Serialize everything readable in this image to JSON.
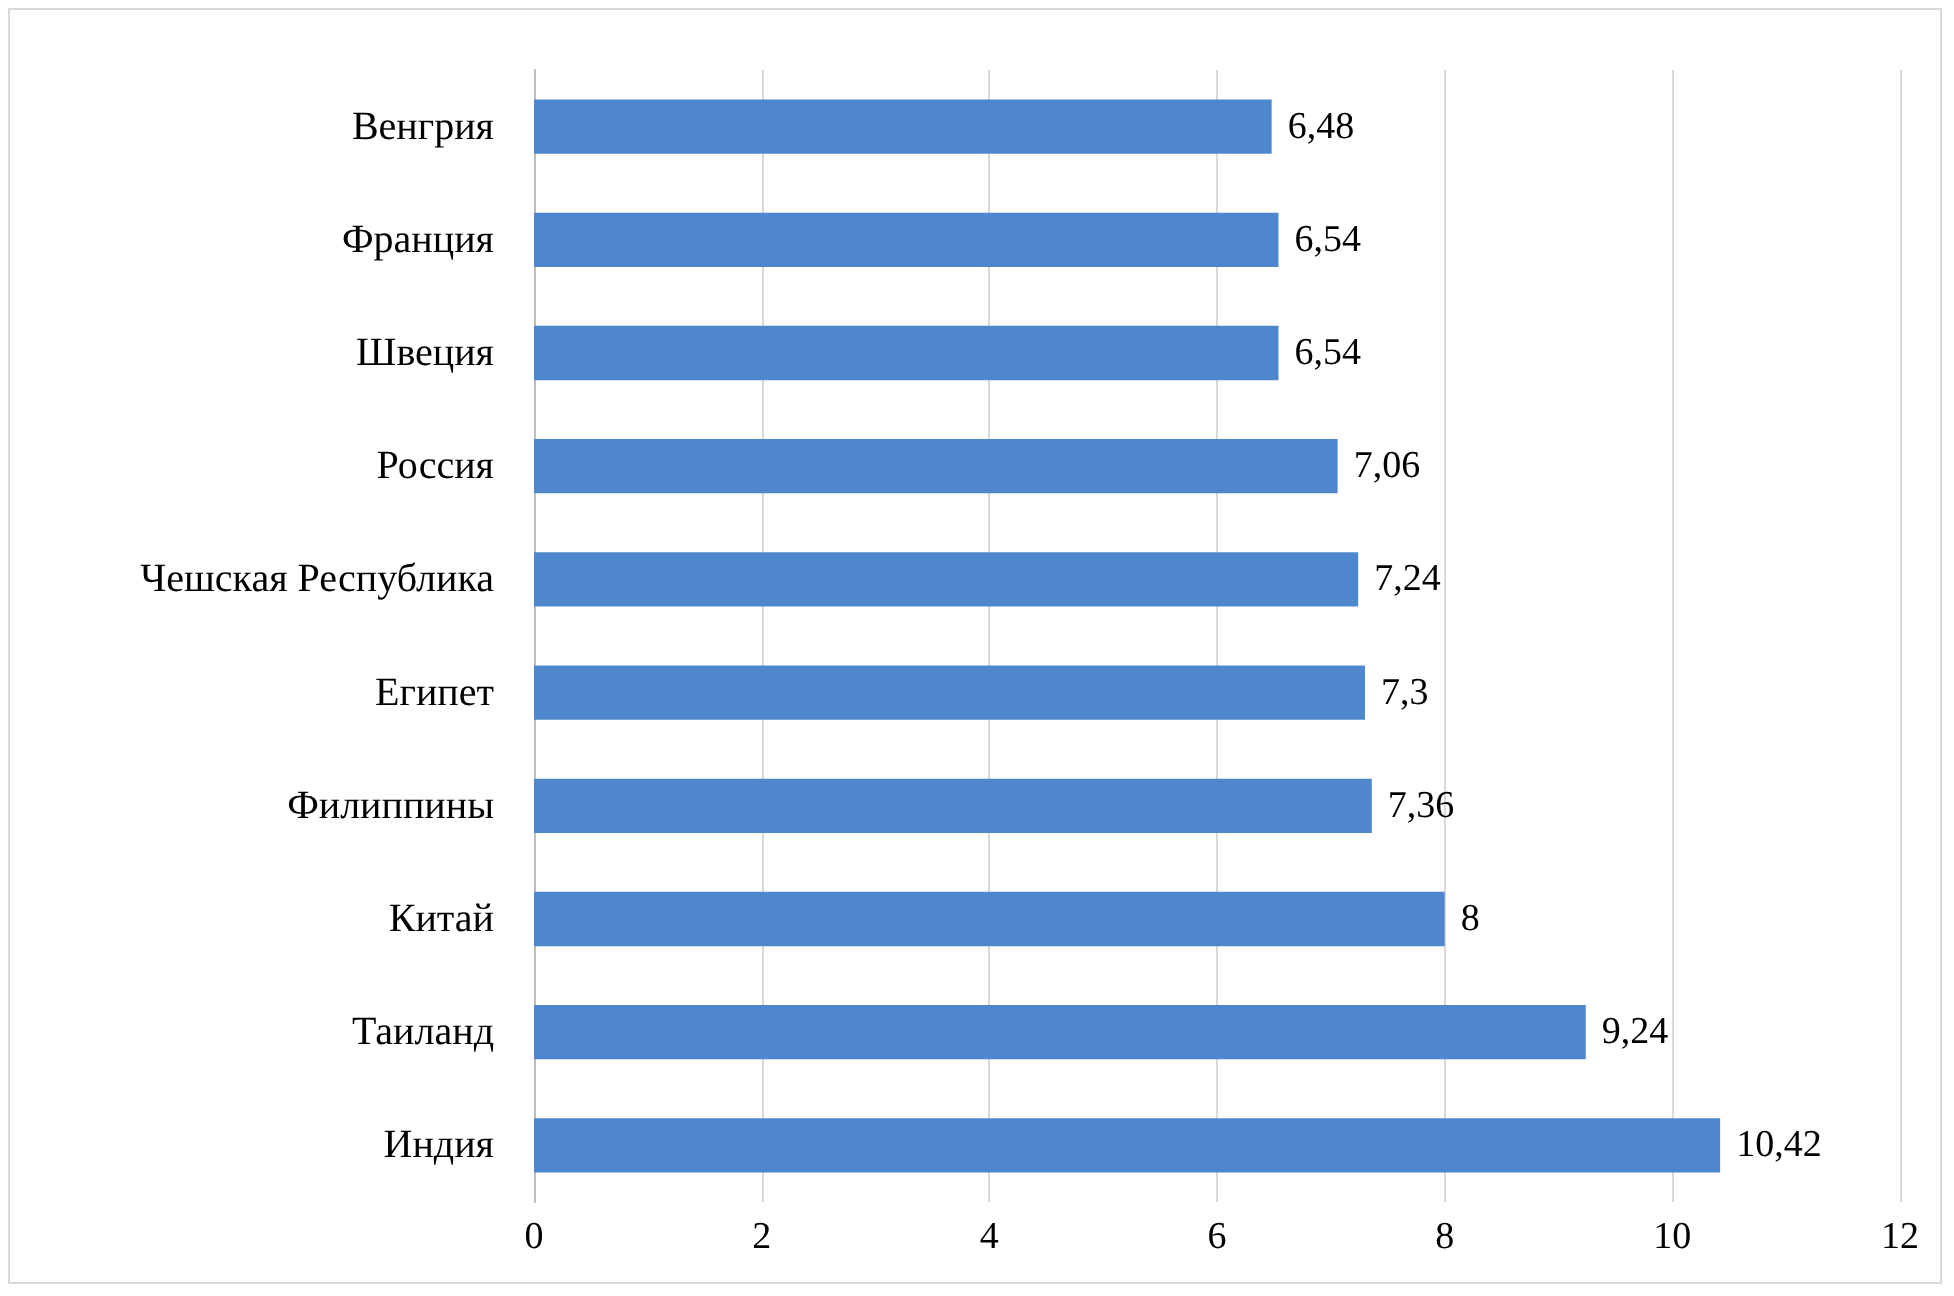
{
  "chart_data": {
    "type": "bar",
    "orientation": "horizontal",
    "categories": [
      "Венгрия",
      "Франция",
      "Швеция",
      "Россия",
      "Чешская Республика",
      "Египет",
      "Филиппины",
      "Китай",
      "Таиланд",
      "Индия"
    ],
    "values": [
      6.48,
      6.54,
      6.54,
      7.06,
      7.24,
      7.3,
      7.36,
      8,
      9.24,
      10.42
    ],
    "value_labels": [
      "6,48",
      "6,54",
      "6,54",
      "7,06",
      "7,24",
      "7,3",
      "7,36",
      "8",
      "9,24",
      "10,42"
    ],
    "color": "#4f87cf",
    "xlim": [
      0,
      12
    ],
    "xticks": [
      0,
      2,
      4,
      6,
      8,
      10,
      12
    ],
    "grid": "x"
  }
}
